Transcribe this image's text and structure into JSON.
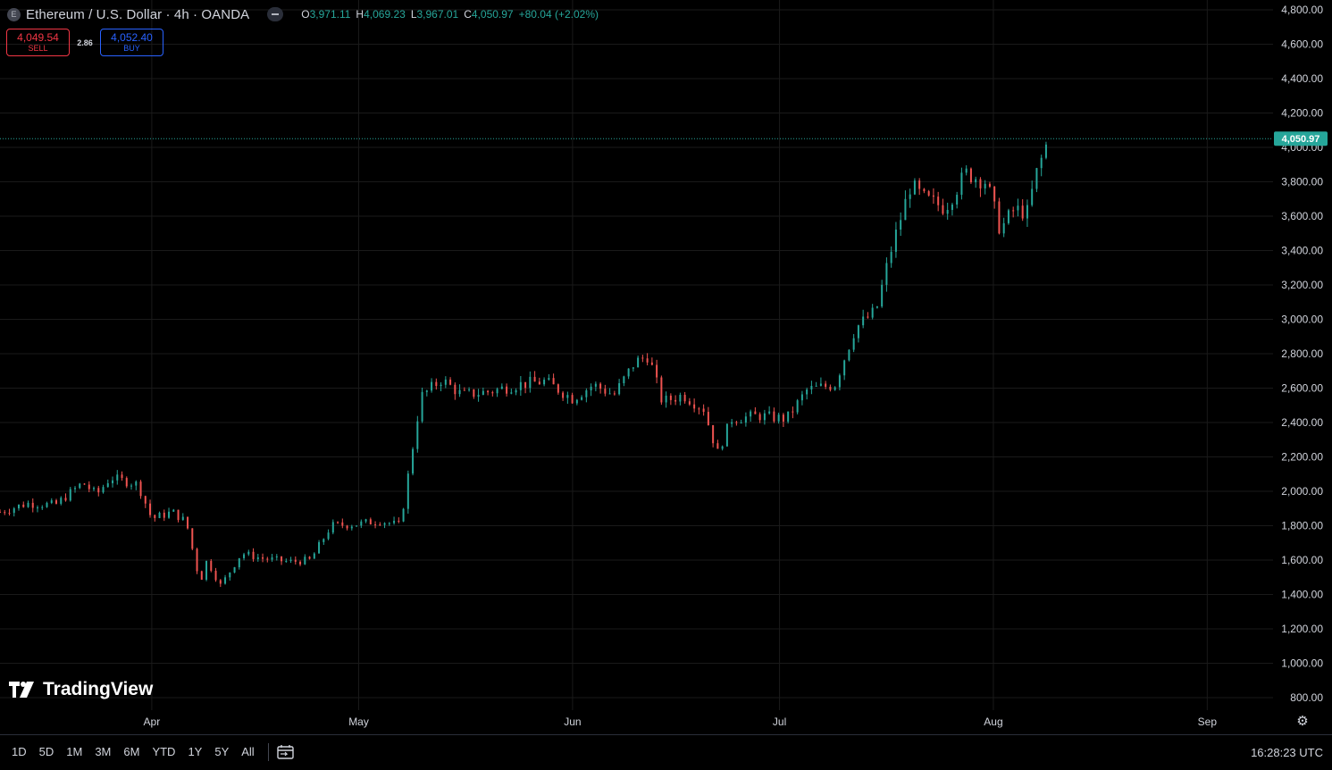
{
  "header": {
    "symbol_icon": "E",
    "title": "Ethereum / U.S. Dollar · 4h · OANDA",
    "ohlc": [
      {
        "k": "O",
        "v": "3,971.11"
      },
      {
        "k": "H",
        "v": "4,069.23"
      },
      {
        "k": "L",
        "v": "3,967.01"
      },
      {
        "k": "C",
        "v": "4,050.97"
      }
    ],
    "change": "+80.04 (+2.02%)"
  },
  "trade": {
    "sell_price": "4,049.54",
    "sell_label": "SELL",
    "spread": "2.86",
    "buy_price": "4,052.40",
    "buy_label": "BUY"
  },
  "logo": {
    "text": "TradingView"
  },
  "bottom": {
    "ranges": [
      "1D",
      "5D",
      "1M",
      "3M",
      "6M",
      "YTD",
      "1Y",
      "5Y",
      "All"
    ],
    "time": "16:28:23 UTC"
  },
  "colors": {
    "up": "#26a69a",
    "down": "#ef5350",
    "last_price_bg": "#26a69a",
    "sell": "#f23645",
    "buy": "#2962ff"
  },
  "chart_data": {
    "type": "candlestick",
    "symbol": "Ethereum / U.S. Dollar",
    "interval": "4h",
    "source": "OANDA",
    "y_ticks": [
      "4,800.00",
      "4,600.00",
      "4,400.00",
      "4,200.00",
      "4,000.00",
      "3,800.00",
      "3,600.00",
      "3,400.00",
      "3,200.00",
      "3,000.00",
      "2,800.00",
      "2,600.00",
      "2,400.00",
      "2,200.00",
      "2,000.00",
      "1,800.00",
      "1,600.00",
      "1,400.00",
      "1,200.00",
      "1,000.00",
      "800.00"
    ],
    "ylim": [
      800,
      4800
    ],
    "x_ticks": [
      "Apr",
      "May",
      "Jun",
      "Jul",
      "Aug",
      "Sep"
    ],
    "last_price": 4050.97,
    "last_price_label": "4,050.97",
    "grid": true,
    "price_path": [
      {
        "x": "Mar 10",
        "y": 1880
      },
      {
        "x": "Mar 14",
        "y": 1930
      },
      {
        "x": "Mar 18",
        "y": 1920
      },
      {
        "x": "Mar 22",
        "y": 2050
      },
      {
        "x": "Mar 24",
        "y": 1980
      },
      {
        "x": "Mar 26",
        "y": 2080
      },
      {
        "x": "Mar 30",
        "y": 2040
      },
      {
        "x": "Apr 1",
        "y": 1840
      },
      {
        "x": "Apr 4",
        "y": 1880
      },
      {
        "x": "Apr 6",
        "y": 1820
      },
      {
        "x": "Apr 8",
        "y": 1470
      },
      {
        "x": "Apr 9",
        "y": 1600
      },
      {
        "x": "Apr 11",
        "y": 1450
      },
      {
        "x": "Apr 14",
        "y": 1640
      },
      {
        "x": "Apr 17",
        "y": 1610
      },
      {
        "x": "Apr 21",
        "y": 1590
      },
      {
        "x": "Apr 24",
        "y": 1600
      },
      {
        "x": "Apr 27",
        "y": 1800
      },
      {
        "x": "May 1",
        "y": 1810
      },
      {
        "x": "May 4",
        "y": 1830
      },
      {
        "x": "May 7",
        "y": 1800
      },
      {
        "x": "May 9",
        "y": 2300
      },
      {
        "x": "May 10",
        "y": 2550
      },
      {
        "x": "May 13",
        "y": 2650
      },
      {
        "x": "May 16",
        "y": 2560
      },
      {
        "x": "May 20",
        "y": 2580
      },
      {
        "x": "May 24",
        "y": 2620
      },
      {
        "x": "May 28",
        "y": 2640
      },
      {
        "x": "Jun 1",
        "y": 2540
      },
      {
        "x": "Jun 4",
        "y": 2620
      },
      {
        "x": "Jun 7",
        "y": 2560
      },
      {
        "x": "Jun 10",
        "y": 2750
      },
      {
        "x": "Jun 12",
        "y": 2790
      },
      {
        "x": "Jun 14",
        "y": 2520
      },
      {
        "x": "Jun 17",
        "y": 2560
      },
      {
        "x": "Jun 20",
        "y": 2480
      },
      {
        "x": "Jun 22",
        "y": 2220
      },
      {
        "x": "Jun 24",
        "y": 2420
      },
      {
        "x": "Jun 28",
        "y": 2440
      },
      {
        "x": "Jul 2",
        "y": 2420
      },
      {
        "x": "Jul 5",
        "y": 2590
      },
      {
        "x": "Jul 9",
        "y": 2620
      },
      {
        "x": "Jul 12",
        "y": 2950
      },
      {
        "x": "Jul 15",
        "y": 3050
      },
      {
        "x": "Jul 17",
        "y": 3380
      },
      {
        "x": "Jul 20",
        "y": 3780
      },
      {
        "x": "Jul 22",
        "y": 3700
      },
      {
        "x": "Jul 25",
        "y": 3650
      },
      {
        "x": "Jul 28",
        "y": 3850
      },
      {
        "x": "Jul 31",
        "y": 3800
      },
      {
        "x": "Aug 2",
        "y": 3520
      },
      {
        "x": "Aug 4",
        "y": 3640
      },
      {
        "x": "Aug 6",
        "y": 3620
      },
      {
        "x": "Aug 7",
        "y": 3820
      },
      {
        "x": "Aug 9",
        "y": 4050
      }
    ]
  }
}
